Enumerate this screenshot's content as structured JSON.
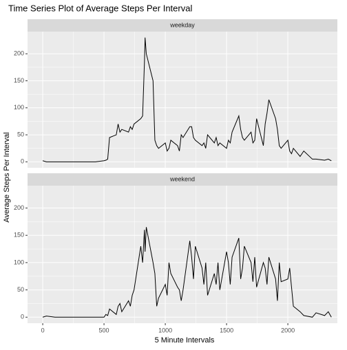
{
  "chart_data": {
    "type": "line",
    "title": "Time Series Plot of Average Steps Per Interval",
    "x_label": "5 Minute Intervals",
    "y_label": "Average Steps Per Interval",
    "facet": true,
    "x": [
      0,
      30,
      100,
      130,
      200,
      230,
      300,
      330,
      400,
      430,
      500,
      515,
      530,
      545,
      600,
      615,
      630,
      645,
      700,
      715,
      730,
      745,
      800,
      815,
      830,
      835,
      845,
      900,
      915,
      930,
      945,
      1000,
      1015,
      1030,
      1045,
      1100,
      1115,
      1130,
      1145,
      1200,
      1215,
      1230,
      1245,
      1300,
      1315,
      1330,
      1345,
      1400,
      1415,
      1430,
      1445,
      1500,
      1515,
      1530,
      1545,
      1600,
      1615,
      1630,
      1645,
      1700,
      1715,
      1730,
      1745,
      1800,
      1815,
      1830,
      1845,
      1900,
      1915,
      1930,
      1945,
      2000,
      2015,
      2030,
      2045,
      2100,
      2130,
      2200,
      2230,
      2300,
      2330,
      2355
    ],
    "series": [
      {
        "name": "weekday",
        "color": "#000000",
        "values": [
          2,
          0,
          0,
          0,
          0,
          0,
          0,
          0,
          0,
          0,
          2,
          3,
          5,
          45,
          50,
          70,
          55,
          60,
          55,
          65,
          60,
          70,
          80,
          85,
          185,
          230,
          200,
          150,
          40,
          30,
          25,
          35,
          20,
          25,
          40,
          30,
          20,
          50,
          45,
          65,
          65,
          45,
          40,
          30,
          35,
          25,
          50,
          35,
          45,
          30,
          35,
          25,
          40,
          35,
          55,
          85,
          60,
          45,
          40,
          55,
          35,
          40,
          80,
          30,
          70,
          90,
          115,
          80,
          60,
          30,
          25,
          40,
          20,
          15,
          25,
          10,
          20,
          5,
          5,
          3,
          5,
          2
        ]
      },
      {
        "name": "weekend",
        "color": "#000000",
        "values": [
          0,
          2,
          0,
          0,
          0,
          0,
          0,
          0,
          0,
          0,
          0,
          5,
          3,
          15,
          5,
          20,
          25,
          10,
          30,
          20,
          40,
          50,
          130,
          100,
          160,
          120,
          165,
          100,
          80,
          20,
          35,
          60,
          40,
          100,
          80,
          55,
          50,
          30,
          50,
          140,
          110,
          70,
          130,
          90,
          60,
          100,
          40,
          80,
          60,
          100,
          50,
          120,
          100,
          60,
          110,
          145,
          70,
          90,
          130,
          100,
          65,
          110,
          55,
          100,
          90,
          60,
          110,
          70,
          30,
          100,
          65,
          70,
          90,
          55,
          20,
          10,
          3,
          0,
          8,
          3,
          10,
          0
        ]
      }
    ],
    "xlim": [
      -124,
      2404
    ],
    "ylim": [
      -11,
      241
    ],
    "xticks": [
      0,
      500,
      1000,
      1500,
      2000
    ],
    "yticks": [
      0,
      50,
      100,
      150,
      200
    ],
    "grid": true
  }
}
